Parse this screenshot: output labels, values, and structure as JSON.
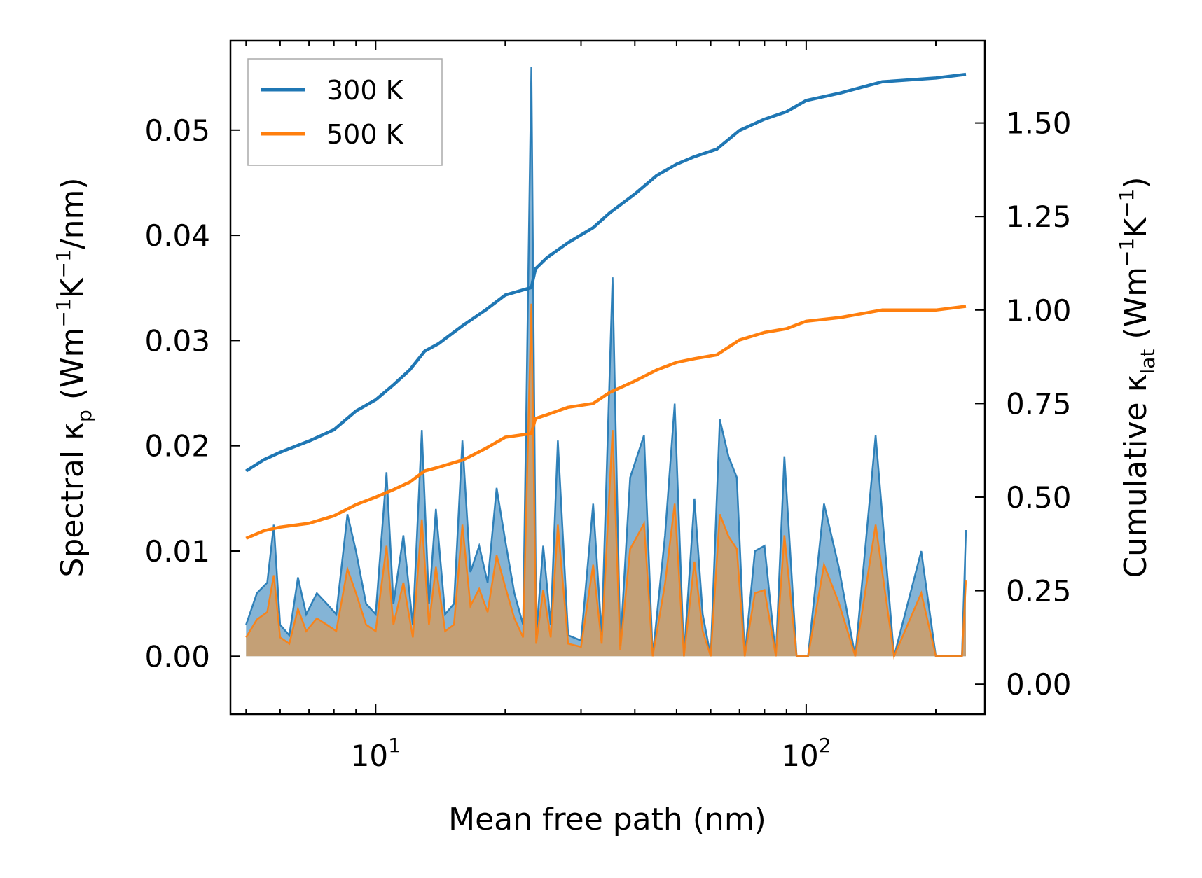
{
  "chart_data": {
    "type": "line",
    "xscale": "log",
    "xlabel": "Mean free path (nm)",
    "xlim": [
      4.6,
      260
    ],
    "x_ticks": [
      {
        "value": 10,
        "base": "10",
        "exp": "1"
      },
      {
        "value": 100,
        "base": "10",
        "exp": "2"
      }
    ],
    "ylabel_left": {
      "prefix": "Spectral κ",
      "sub": "p",
      "mid": " (Wm",
      "sup1": "−1",
      "mid2": "K",
      "sup2": "−1",
      "suffix": "/nm)"
    },
    "ylim_left": [
      -0.0055,
      0.0585
    ],
    "yticks_left": [
      "0.00",
      "0.01",
      "0.02",
      "0.03",
      "0.04",
      "0.05"
    ],
    "ylabel_right": {
      "prefix": "Cumulative κ",
      "sub": "lat",
      "mid": " (Wm",
      "sup1": "−1",
      "mid2": "K",
      "sup2": "−1",
      "suffix": ")"
    },
    "ylim_right": [
      -0.08,
      1.72
    ],
    "yticks_right": [
      "0.00",
      "0.25",
      "0.50",
      "0.75",
      "1.00",
      "1.25",
      "1.50"
    ],
    "legend": {
      "position": "top-left",
      "entries": [
        "300 K",
        "500 K"
      ]
    },
    "colors": {
      "s300": "#1f77b4",
      "s500": "#ff7f0e",
      "fill300": "#1f77b4",
      "fill500": "#d99a55"
    },
    "series": [
      {
        "name": "300 K",
        "cumulative": [
          [
            5.0,
            0.57
          ],
          [
            5.5,
            0.6
          ],
          [
            6.0,
            0.62
          ],
          [
            7.0,
            0.65
          ],
          [
            8.0,
            0.68
          ],
          [
            9.0,
            0.73
          ],
          [
            10.0,
            0.76
          ],
          [
            11.0,
            0.8
          ],
          [
            12.0,
            0.84
          ],
          [
            13.0,
            0.89
          ],
          [
            14.0,
            0.91
          ],
          [
            16.0,
            0.96
          ],
          [
            18.0,
            1.0
          ],
          [
            20.0,
            1.04
          ],
          [
            23.0,
            1.06
          ],
          [
            23.5,
            1.11
          ],
          [
            25.0,
            1.14
          ],
          [
            28.0,
            1.18
          ],
          [
            32.0,
            1.22
          ],
          [
            35.0,
            1.26
          ],
          [
            40.0,
            1.31
          ],
          [
            45.0,
            1.36
          ],
          [
            50.0,
            1.39
          ],
          [
            55.0,
            1.41
          ],
          [
            62.0,
            1.43
          ],
          [
            70.0,
            1.48
          ],
          [
            80.0,
            1.51
          ],
          [
            90.0,
            1.53
          ],
          [
            100.0,
            1.56
          ],
          [
            120.0,
            1.58
          ],
          [
            150.0,
            1.61
          ],
          [
            200.0,
            1.62
          ],
          [
            235.0,
            1.63
          ]
        ],
        "spectral": [
          [
            5.0,
            0.003
          ],
          [
            5.3,
            0.006
          ],
          [
            5.6,
            0.007
          ],
          [
            5.8,
            0.0125
          ],
          [
            6.0,
            0.003
          ],
          [
            6.3,
            0.002
          ],
          [
            6.6,
            0.0075
          ],
          [
            6.9,
            0.004
          ],
          [
            7.3,
            0.006
          ],
          [
            7.7,
            0.005
          ],
          [
            8.1,
            0.004
          ],
          [
            8.6,
            0.0135
          ],
          [
            9.0,
            0.01
          ],
          [
            9.5,
            0.005
          ],
          [
            10.0,
            0.004
          ],
          [
            10.6,
            0.0175
          ],
          [
            11.0,
            0.005
          ],
          [
            11.6,
            0.0115
          ],
          [
            12.2,
            0.003
          ],
          [
            12.8,
            0.0215
          ],
          [
            13.3,
            0.005
          ],
          [
            13.8,
            0.014
          ],
          [
            14.5,
            0.004
          ],
          [
            15.2,
            0.005
          ],
          [
            15.9,
            0.0205
          ],
          [
            16.6,
            0.008
          ],
          [
            17.4,
            0.0105
          ],
          [
            18.2,
            0.007
          ],
          [
            19.1,
            0.016
          ],
          [
            20.0,
            0.011
          ],
          [
            21.0,
            0.006
          ],
          [
            22.0,
            0.003
          ],
          [
            23.0,
            0.056
          ],
          [
            23.6,
            0.002
          ],
          [
            24.5,
            0.0105
          ],
          [
            25.5,
            0.003
          ],
          [
            26.5,
            0.0205
          ],
          [
            28.0,
            0.002
          ],
          [
            30.0,
            0.0015
          ],
          [
            32.0,
            0.0145
          ],
          [
            33.5,
            0.002
          ],
          [
            35.5,
            0.036
          ],
          [
            37.0,
            0.001
          ],
          [
            39.0,
            0.017
          ],
          [
            42.0,
            0.021
          ],
          [
            44.0,
            0.0
          ],
          [
            47.0,
            0.0115
          ],
          [
            49.5,
            0.024
          ],
          [
            52.0,
            0.0
          ],
          [
            55.0,
            0.015
          ],
          [
            57.5,
            0.004
          ],
          [
            60.0,
            0.0
          ],
          [
            63.0,
            0.0225
          ],
          [
            66.0,
            0.019
          ],
          [
            69.0,
            0.017
          ],
          [
            72.0,
            0.0
          ],
          [
            76.0,
            0.01
          ],
          [
            80.0,
            0.0105
          ],
          [
            85.0,
            0.0
          ],
          [
            89.0,
            0.019
          ],
          [
            95.0,
            0.0
          ],
          [
            101.0,
            0.0
          ],
          [
            110.0,
            0.0145
          ],
          [
            119.0,
            0.0085
          ],
          [
            130.0,
            0.0
          ],
          [
            145.0,
            0.021
          ],
          [
            160.0,
            0.0
          ],
          [
            185.0,
            0.01
          ],
          [
            200.0,
            0.0
          ],
          [
            230.0,
            0.0
          ],
          [
            235.0,
            0.012
          ]
        ]
      },
      {
        "name": "500 K",
        "cumulative": [
          [
            5.0,
            0.39
          ],
          [
            5.5,
            0.41
          ],
          [
            6.0,
            0.42
          ],
          [
            7.0,
            0.43
          ],
          [
            8.0,
            0.45
          ],
          [
            9.0,
            0.48
          ],
          [
            10.0,
            0.5
          ],
          [
            11.0,
            0.52
          ],
          [
            12.0,
            0.54
          ],
          [
            13.0,
            0.57
          ],
          [
            14.0,
            0.58
          ],
          [
            16.0,
            0.6
          ],
          [
            18.0,
            0.63
          ],
          [
            20.0,
            0.66
          ],
          [
            23.0,
            0.67
          ],
          [
            23.5,
            0.71
          ],
          [
            25.0,
            0.72
          ],
          [
            28.0,
            0.74
          ],
          [
            32.0,
            0.75
          ],
          [
            35.0,
            0.78
          ],
          [
            40.0,
            0.81
          ],
          [
            45.0,
            0.84
          ],
          [
            50.0,
            0.86
          ],
          [
            55.0,
            0.87
          ],
          [
            62.0,
            0.88
          ],
          [
            70.0,
            0.92
          ],
          [
            80.0,
            0.94
          ],
          [
            90.0,
            0.95
          ],
          [
            100.0,
            0.97
          ],
          [
            120.0,
            0.98
          ],
          [
            150.0,
            1.0
          ],
          [
            200.0,
            1.0
          ],
          [
            235.0,
            1.01
          ]
        ],
        "spectral": [
          [
            5.0,
            0.0018
          ],
          [
            5.3,
            0.0035
          ],
          [
            5.6,
            0.0042
          ],
          [
            5.8,
            0.0077
          ],
          [
            6.0,
            0.0018
          ],
          [
            6.3,
            0.0012
          ],
          [
            6.6,
            0.0045
          ],
          [
            6.9,
            0.0024
          ],
          [
            7.3,
            0.0036
          ],
          [
            7.7,
            0.003
          ],
          [
            8.1,
            0.0024
          ],
          [
            8.6,
            0.0083
          ],
          [
            9.0,
            0.006
          ],
          [
            9.5,
            0.003
          ],
          [
            10.0,
            0.0024
          ],
          [
            10.6,
            0.0105
          ],
          [
            11.0,
            0.003
          ],
          [
            11.6,
            0.007
          ],
          [
            12.2,
            0.0018
          ],
          [
            12.8,
            0.013
          ],
          [
            13.3,
            0.003
          ],
          [
            13.8,
            0.0085
          ],
          [
            14.5,
            0.0024
          ],
          [
            15.2,
            0.003
          ],
          [
            15.9,
            0.0125
          ],
          [
            16.6,
            0.0048
          ],
          [
            17.4,
            0.0064
          ],
          [
            18.2,
            0.0042
          ],
          [
            19.1,
            0.0096
          ],
          [
            20.0,
            0.0066
          ],
          [
            21.0,
            0.0036
          ],
          [
            22.0,
            0.0018
          ],
          [
            23.0,
            0.0335
          ],
          [
            23.6,
            0.0012
          ],
          [
            24.5,
            0.0063
          ],
          [
            25.5,
            0.0018
          ],
          [
            26.5,
            0.0125
          ],
          [
            28.0,
            0.0012
          ],
          [
            30.0,
            0.0009
          ],
          [
            32.0,
            0.0087
          ],
          [
            33.5,
            0.0012
          ],
          [
            35.5,
            0.0215
          ],
          [
            37.0,
            0.0006
          ],
          [
            39.0,
            0.0102
          ],
          [
            42.0,
            0.0126
          ],
          [
            44.0,
            0.0
          ],
          [
            47.0,
            0.0069
          ],
          [
            49.5,
            0.0145
          ],
          [
            52.0,
            0.0
          ],
          [
            55.0,
            0.009
          ],
          [
            57.5,
            0.0024
          ],
          [
            60.0,
            0.0
          ],
          [
            63.0,
            0.0135
          ],
          [
            66.0,
            0.0114
          ],
          [
            69.0,
            0.0102
          ],
          [
            72.0,
            0.0
          ],
          [
            76.0,
            0.006
          ],
          [
            80.0,
            0.0063
          ],
          [
            85.0,
            0.0
          ],
          [
            89.0,
            0.0115
          ],
          [
            95.0,
            0.0
          ],
          [
            101.0,
            0.0
          ],
          [
            110.0,
            0.0087
          ],
          [
            119.0,
            0.0051
          ],
          [
            130.0,
            0.0
          ],
          [
            145.0,
            0.0125
          ],
          [
            160.0,
            0.0
          ],
          [
            185.0,
            0.006
          ],
          [
            200.0,
            0.0
          ],
          [
            230.0,
            0.0
          ],
          [
            235.0,
            0.0072
          ]
        ]
      }
    ]
  }
}
